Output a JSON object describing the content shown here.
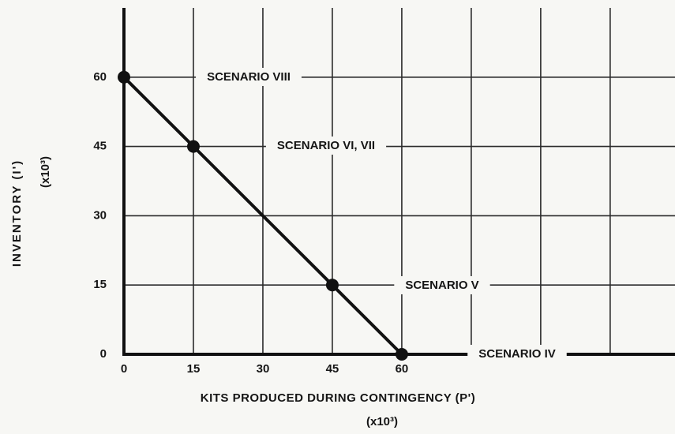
{
  "chart_data": {
    "type": "line",
    "xlabel": "KITS PRODUCED DURING CONTINGENCY (P')",
    "xlabel_unit": "(x10³)",
    "ylabel": "INVENTORY (I')",
    "ylabel_unit": "(x10³)",
    "x": [
      0,
      15,
      45,
      60
    ],
    "values": [
      60,
      45,
      15,
      0
    ],
    "color": "#111111",
    "markers": true,
    "xlim": [
      0,
      119
    ],
    "ylim": [
      0,
      75
    ],
    "xticks": [
      0,
      15,
      30,
      45,
      60,
      {
        "value": 75,
        "label": null
      },
      {
        "value": 90,
        "label": null
      },
      {
        "value": 105,
        "label": null
      }
    ],
    "yticks": [
      0,
      15,
      30,
      45,
      60
    ],
    "grid": true,
    "annotations": [
      "SCENARIO VIII",
      "SCENARIO VI, VII",
      "SCENARIO V",
      "SCENARIO IV"
    ]
  }
}
